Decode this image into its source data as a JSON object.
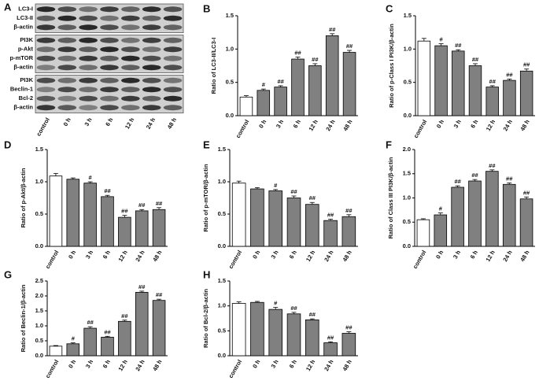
{
  "panel_a": {
    "label": "A",
    "groups": [
      [
        "LC3-I",
        "LC3-II",
        "β-actin"
      ],
      [
        "PI3K",
        "p-Akt",
        "p-mTOR",
        "β-actin"
      ],
      [
        "PI3K",
        "Beclin-1",
        "Bcl-2",
        "β-actin"
      ]
    ],
    "lanes": [
      "control",
      "0 h",
      "3 h",
      "6 h",
      "12 h",
      "24 h",
      "48 h"
    ]
  },
  "chart_data": [
    {
      "type": "bar",
      "label": "B",
      "ylabel": "Ratio of LC3-II/LC3-I",
      "categories": [
        "control",
        "0 h",
        "3 h",
        "6 h",
        "12 h",
        "24 h",
        "48 h"
      ],
      "values": [
        0.28,
        0.38,
        0.43,
        0.85,
        0.75,
        1.2,
        0.95
      ],
      "errors": [
        0.02,
        0.02,
        0.02,
        0.03,
        0.03,
        0.03,
        0.03
      ],
      "marks": [
        null,
        "#",
        "##",
        "##",
        "##",
        "##",
        "##"
      ],
      "colors": [
        "#ffffff",
        "#808080",
        "#808080",
        "#808080",
        "#808080",
        "#808080",
        "#808080"
      ],
      "ylim": [
        0,
        1.5
      ],
      "yticks": [
        {
          "value": 0,
          "label": "0.0"
        },
        0.5,
        {
          "value": 1,
          "label": "1.0"
        },
        1.5
      ]
    },
    {
      "type": "bar",
      "label": "C",
      "ylabel": "Ratio of p-Class I PI3K/β-actin",
      "categories": [
        "control",
        "0 h",
        "3 h",
        "6 h",
        "12 h",
        "24 h",
        "48 h"
      ],
      "values": [
        1.12,
        1.05,
        0.97,
        0.75,
        0.43,
        0.53,
        0.67
      ],
      "errors": [
        0.04,
        0.03,
        0.02,
        0.03,
        0.02,
        0.02,
        0.03
      ],
      "marks": [
        null,
        "#",
        "##",
        "##",
        "##",
        "##",
        "##"
      ],
      "colors": [
        "#ffffff",
        "#808080",
        "#808080",
        "#808080",
        "#808080",
        "#808080",
        "#808080"
      ],
      "ylim": [
        0,
        1.5
      ],
      "yticks": [
        {
          "value": 0,
          "label": "0.0"
        },
        0.5,
        {
          "value": 1,
          "label": "1.0"
        },
        1.5
      ]
    },
    {
      "type": "bar",
      "label": "D",
      "ylabel": "Ratio of p-Akt/β-actin",
      "categories": [
        "control",
        "0 h",
        "3 h",
        "6 h",
        "12 h",
        "24 h",
        "48 h"
      ],
      "values": [
        1.09,
        1.04,
        0.98,
        0.77,
        0.45,
        0.55,
        0.57
      ],
      "errors": [
        0.04,
        0.02,
        0.02,
        0.02,
        0.03,
        0.02,
        0.03
      ],
      "marks": [
        null,
        null,
        "#",
        "##",
        "##",
        "##",
        "##"
      ],
      "colors": [
        "#ffffff",
        "#808080",
        "#808080",
        "#808080",
        "#808080",
        "#808080",
        "#808080"
      ],
      "ylim": [
        0,
        1.5
      ],
      "yticks": [
        {
          "value": 0,
          "label": "0.0"
        },
        0.5,
        {
          "value": 1,
          "label": "1.0"
        },
        1.5
      ]
    },
    {
      "type": "bar",
      "label": "E",
      "ylabel": "Ratio of p-mTOR/β-actin",
      "categories": [
        "control",
        "0 h",
        "3 h",
        "6 h",
        "12 h",
        "24 h",
        "48 h"
      ],
      "values": [
        0.98,
        0.89,
        0.86,
        0.75,
        0.65,
        0.4,
        0.46
      ],
      "errors": [
        0.03,
        0.02,
        0.02,
        0.03,
        0.03,
        0.02,
        0.03
      ],
      "marks": [
        null,
        null,
        "#",
        "##",
        "##",
        "##",
        "##"
      ],
      "colors": [
        "#ffffff",
        "#808080",
        "#808080",
        "#808080",
        "#808080",
        "#808080",
        "#808080"
      ],
      "ylim": [
        0,
        1.5
      ],
      "yticks": [
        {
          "value": 0,
          "label": "0.0"
        },
        0.5,
        {
          "value": 1,
          "label": "1.0"
        },
        1.5
      ]
    },
    {
      "type": "bar",
      "label": "F",
      "ylabel": "Ratio of Class III PI3K/β-actin",
      "categories": [
        "control",
        "0 h",
        "3 h",
        "6 h",
        "12 h",
        "24 h",
        "48 h"
      ],
      "values": [
        0.55,
        0.65,
        1.22,
        1.35,
        1.55,
        1.28,
        0.98
      ],
      "errors": [
        0.02,
        0.04,
        0.03,
        0.03,
        0.03,
        0.03,
        0.04
      ],
      "marks": [
        null,
        "#",
        "##",
        "##",
        "##",
        "##",
        "##"
      ],
      "colors": [
        "#ffffff",
        "#808080",
        "#808080",
        "#808080",
        "#808080",
        "#808080",
        "#808080"
      ],
      "ylim": [
        0,
        2.0
      ],
      "yticks": [
        {
          "value": 0,
          "label": "0.0"
        },
        0.5,
        {
          "value": 1,
          "label": "1.0"
        },
        1.5,
        {
          "value": 2,
          "label": "2.0"
        }
      ]
    },
    {
      "type": "bar",
      "label": "G",
      "ylabel": "Ratio of Beclin-1/β-actin",
      "categories": [
        "control",
        "0 h",
        "3 h",
        "6 h",
        "12 h",
        "24 h",
        "48 h"
      ],
      "values": [
        0.32,
        0.4,
        0.92,
        0.62,
        1.15,
        2.12,
        1.85
      ],
      "errors": [
        0.02,
        0.03,
        0.05,
        0.03,
        0.04,
        0.04,
        0.04
      ],
      "marks": [
        null,
        "#",
        "##",
        "##",
        "##",
        "##",
        "##"
      ],
      "colors": [
        "#ffffff",
        "#808080",
        "#808080",
        "#808080",
        "#808080",
        "#808080",
        "#808080"
      ],
      "ylim": [
        0,
        2.5
      ],
      "yticks": [
        {
          "value": 0,
          "label": "0.0"
        },
        0.5,
        {
          "value": 1,
          "label": "1.0"
        },
        1.5,
        {
          "value": 2,
          "label": "2.0"
        },
        2.5
      ]
    },
    {
      "type": "bar",
      "label": "H",
      "ylabel": "Ratio of Bcl-2/β-actin",
      "categories": [
        "control",
        "0 h",
        "3 h",
        "6 h",
        "12 h",
        "24 h",
        "48 h"
      ],
      "values": [
        1.05,
        1.07,
        0.93,
        0.84,
        0.72,
        0.26,
        0.45
      ],
      "errors": [
        0.03,
        0.02,
        0.04,
        0.03,
        0.02,
        0.02,
        0.03
      ],
      "marks": [
        null,
        null,
        "#",
        "##",
        "##",
        "##",
        "##"
      ],
      "colors": [
        "#ffffff",
        "#808080",
        "#808080",
        "#808080",
        "#808080",
        "#808080",
        "#808080"
      ],
      "ylim": [
        0,
        1.5
      ],
      "yticks": [
        {
          "value": 0,
          "label": "0.0"
        },
        0.5,
        {
          "value": 1,
          "label": "1.0"
        },
        1.5
      ]
    }
  ]
}
